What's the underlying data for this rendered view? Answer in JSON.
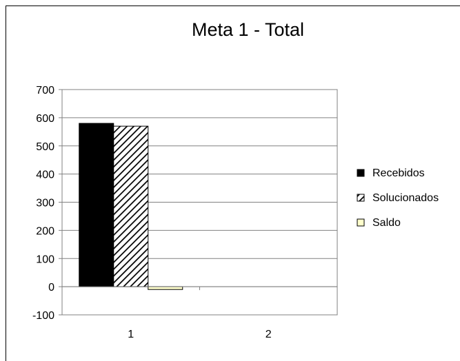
{
  "chart_data": {
    "type": "bar",
    "title": "Meta 1 - Total",
    "categories": [
      "1",
      "2"
    ],
    "series": [
      {
        "name": "Recebidos",
        "values": [
          580,
          0
        ],
        "color": "#000000",
        "pattern": "solid"
      },
      {
        "name": "Solucionados",
        "values": [
          570,
          0
        ],
        "color": "#ffffff",
        "pattern": "diagonal-hatch"
      },
      {
        "name": "Saldo",
        "values": [
          -10,
          0
        ],
        "color": "#ffffcc",
        "pattern": "solid"
      }
    ],
    "ylim": [
      -100,
      700
    ],
    "yticks": [
      -100,
      0,
      100,
      200,
      300,
      400,
      500,
      600,
      700
    ],
    "grid": true,
    "legend_position": "right"
  }
}
